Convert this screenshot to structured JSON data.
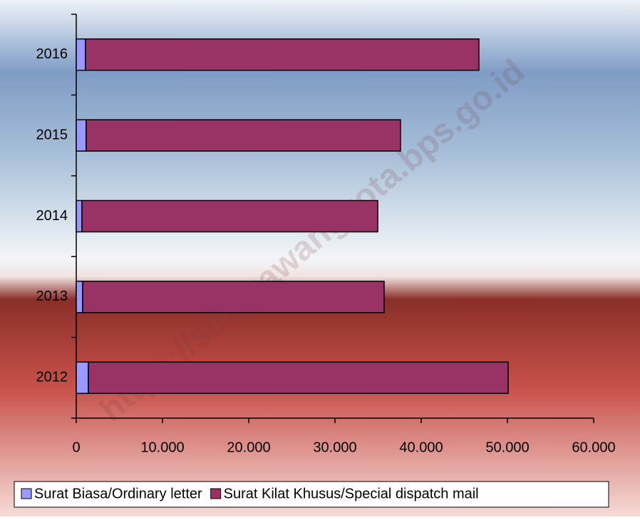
{
  "chart_data": {
    "type": "stacked-bar-horizontal",
    "watermark": "https://singkawangkota.bps.go.id",
    "categories": [
      "2012",
      "2013",
      "2014",
      "2015",
      "2016"
    ],
    "series": [
      {
        "name": "Surat Biasa/Ordinary letter",
        "color": "#9999ff",
        "values": [
          1400,
          740,
          660,
          1150,
          1070
        ]
      },
      {
        "name": "Surat Kilat Khusus/Special dispatch mail",
        "color": "#993366",
        "values": [
          48680,
          34960,
          34300,
          36450,
          45620
        ]
      }
    ],
    "xlim": [
      0,
      60000
    ],
    "xticks": [
      0,
      {
        "value": 10000,
        "label": "10.000"
      },
      {
        "value": 20000,
        "label": "20.000"
      },
      {
        "value": 30000,
        "label": "30.000"
      },
      {
        "value": 40000,
        "label": "40.000"
      },
      {
        "value": 50000,
        "label": "50.000"
      },
      {
        "value": 60000,
        "label": "60.000"
      }
    ],
    "legend": "bottom"
  }
}
